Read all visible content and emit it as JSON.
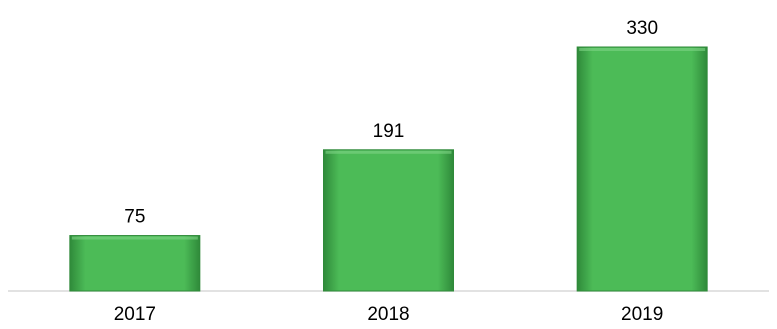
{
  "chart_data": {
    "type": "bar",
    "categories": [
      "2017",
      "2018",
      "2019"
    ],
    "values": [
      75,
      191,
      330
    ],
    "data_labels": [
      "75",
      "191",
      "330"
    ],
    "title": "",
    "xlabel": "",
    "ylabel": "",
    "ylim": [
      0,
      330
    ],
    "grid": false,
    "legend": "none",
    "colors": {
      "bar_fill": "#4CBB57",
      "bar_edge": "#2F8A3A",
      "bar_highlight": "#7FD486",
      "baseline": "#D9D9D9",
      "text": "#000000"
    }
  }
}
